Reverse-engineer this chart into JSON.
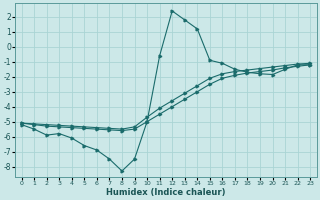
{
  "xlabel": "Humidex (Indice chaleur)",
  "background_color": "#cce8e8",
  "grid_color": "#aad4d4",
  "line_color": "#1a6b6b",
  "xlim": [
    -0.5,
    23.5
  ],
  "ylim": [
    -8.7,
    2.9
  ],
  "xticks": [
    0,
    1,
    2,
    3,
    4,
    5,
    6,
    7,
    8,
    9,
    10,
    11,
    12,
    13,
    14,
    15,
    16,
    17,
    18,
    19,
    20,
    21,
    22,
    23
  ],
  "yticks": [
    -8,
    -7,
    -6,
    -5,
    -4,
    -3,
    -2,
    -1,
    0,
    1,
    2
  ],
  "curve1_x": [
    0,
    1,
    2,
    3,
    4,
    5,
    6,
    7,
    8,
    9,
    10,
    11,
    12,
    13,
    14,
    15,
    16,
    17,
    18,
    19,
    20,
    21,
    22,
    23
  ],
  "curve1_y": [
    -5.2,
    -5.5,
    -5.9,
    -5.8,
    -6.1,
    -6.6,
    -6.9,
    -7.5,
    -8.3,
    -7.5,
    -5.0,
    -0.6,
    2.4,
    1.8,
    1.2,
    -0.9,
    -1.1,
    -1.5,
    -1.7,
    -1.8,
    -1.85,
    -1.5,
    -1.2,
    -1.2
  ],
  "curve2_x": [
    0,
    1,
    2,
    3,
    4,
    5,
    6,
    7,
    8,
    9,
    10,
    11,
    12,
    13,
    14,
    15,
    16,
    17,
    18,
    19,
    20,
    21,
    22,
    23
  ],
  "curve2_y": [
    -5.1,
    -5.2,
    -5.3,
    -5.35,
    -5.4,
    -5.45,
    -5.5,
    -5.55,
    -5.6,
    -5.5,
    -5.0,
    -4.5,
    -4.0,
    -3.5,
    -3.0,
    -2.5,
    -2.1,
    -1.9,
    -1.75,
    -1.65,
    -1.55,
    -1.4,
    -1.3,
    -1.2
  ],
  "curve3_x": [
    0,
    1,
    2,
    3,
    4,
    5,
    6,
    7,
    8,
    9,
    10,
    11,
    12,
    13,
    14,
    15,
    16,
    17,
    18,
    19,
    20,
    21,
    22,
    23
  ],
  "curve3_y": [
    -5.1,
    -5.15,
    -5.2,
    -5.25,
    -5.3,
    -5.35,
    -5.4,
    -5.45,
    -5.5,
    -5.35,
    -4.7,
    -4.1,
    -3.6,
    -3.1,
    -2.6,
    -2.1,
    -1.8,
    -1.65,
    -1.55,
    -1.45,
    -1.35,
    -1.25,
    -1.15,
    -1.1
  ]
}
